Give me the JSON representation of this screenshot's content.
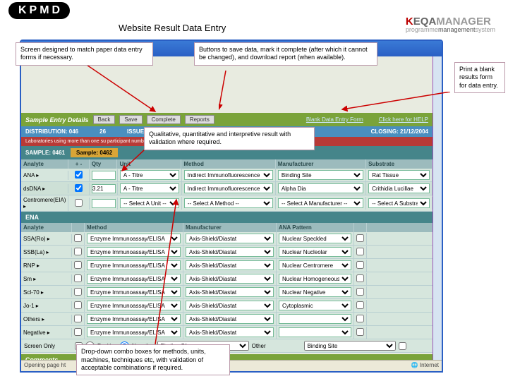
{
  "logo": "KPMD",
  "page_title": "Website Result Data Entry",
  "brand": {
    "k": "K",
    "eqa": "EQA",
    "mgr": "MANAGER",
    "p": "programme",
    "m": "management",
    "s": "system"
  },
  "callouts": {
    "c1": "Screen designed to match paper data entry forms if necessary.",
    "c2": "Buttons to save data, mark it complete (after which it cannot be changed), and download report (when available).",
    "c3": "Print a blank results form for data entry.",
    "c4": "Qualitative, quantitative and interpretive result with validation where required.",
    "c5": "Drop-down combo boxes for methods, units, machines, techniques etc, with validation of acceptable combinations if required."
  },
  "greenhdr": {
    "title": "Sample Entry Details",
    "buttons": [
      "Back",
      "Save",
      "Complete",
      "Reports"
    ],
    "link1": "Blank Data Entry Form",
    "link2": "Click here for HELP"
  },
  "bluebar": {
    "dist": "DISTRIBUTION: 046",
    "num": "26",
    "issued": "ISSUED: 30/11/2004",
    "closing": "CLOSING: 21/12/2004"
  },
  "redbar": "Laboratories using more than one su                                                                                                                                                participant number. Please contact by",
  "sample": {
    "label": "SAMPLE: 0461",
    "tab": "Sample: 0462"
  },
  "cols1": [
    "Analyte",
    "+ -",
    "Qty",
    "Unit",
    "Method",
    "Manufacturer",
    "Substrate"
  ],
  "rows1": [
    {
      "a": "ANA",
      "chk": true,
      "qty": "",
      "unit": "A - Titre",
      "method": "Indirect Immunofluorescence",
      "mfr": "Binding Site",
      "sub": "Rat Tissue"
    },
    {
      "a": "dsDNA",
      "chk": true,
      "qty": "3.21",
      "unit": "A - Titre",
      "method": "Indirect Immunofluorescence",
      "mfr": "Alpha Dia",
      "sub": "Crithidia Lucillae"
    },
    {
      "a": "Centromere(EIA)",
      "chk": false,
      "qty": "",
      "unit": "-- Select A Unit --",
      "method": "-- Select A Method --",
      "mfr": "-- Select A Manufacturer --",
      "sub": "-- Select A Substrate --"
    }
  ],
  "section2": "ENA",
  "cols2": [
    "Analyte",
    "",
    "Method",
    "Manufacturer",
    "ANA Pattern",
    ""
  ],
  "rows2": [
    {
      "a": "SSA(Ro)",
      "m": "Enzyme Immunoassay/ELISA",
      "mf": "Axis-Shield/Diastat",
      "p": "Nuclear Speckled"
    },
    {
      "a": "SSB(La)",
      "m": "Enzyme Immunoassay/ELISA",
      "mf": "Axis-Shield/Diastat",
      "p": "Nuclear Nucleolar"
    },
    {
      "a": "RNP",
      "m": "Enzyme Immunoassay/ELISA",
      "mf": "Axis-Shield/Diastat",
      "p": "Nuclear Centromere"
    },
    {
      "a": "Sm",
      "m": "Enzyme Immunoassay/ELISA",
      "mf": "Axis-Shield/Diastat",
      "p": "Nuclear Homogeneous"
    },
    {
      "a": "Scl-70",
      "m": "Enzyme Immunoassay/ELISA",
      "mf": "Axis-Shield/Diastat",
      "p": "Nuclear Negative"
    },
    {
      "a": "Jo-1",
      "m": "Enzyme Immunoassay/ELISA",
      "mf": "Axis-Shield/Diastat",
      "p": "Cytoplasmic"
    },
    {
      "a": "Others",
      "m": "Enzyme Immunoassay/ELISA",
      "mf": "Axis-Shield/Diastat",
      "p": ""
    },
    {
      "a": "Negative",
      "m": "Enzyme Immunoassay/ELISA",
      "mf": "Axis-Shield/Diastat",
      "p": ""
    }
  ],
  "radiorow": {
    "label": "Screen Only",
    "opts": [
      "Positive",
      "Negative"
    ],
    "mfr": "Binding Site",
    "other": "Other",
    "bs": "Binding Site"
  },
  "comments": "Comments",
  "status": {
    "left": "Opening page ht",
    "right": "Internet"
  }
}
